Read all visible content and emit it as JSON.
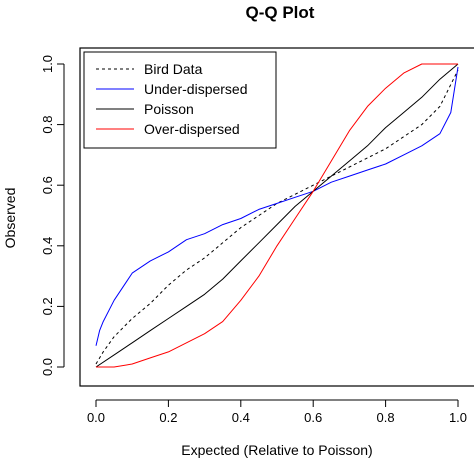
{
  "chart_data": {
    "type": "line",
    "title": "Q-Q Plot",
    "xlabel": "Expected (Relative to Poisson)",
    "ylabel": "Observed",
    "xlim": [
      0,
      1
    ],
    "ylim": [
      0,
      1
    ],
    "xticks": [
      "0.0",
      "0.2",
      "0.4",
      "0.6",
      "0.8",
      "1.0"
    ],
    "yticks": [
      "0.0",
      "0.2",
      "0.4",
      "0.6",
      "0.8",
      "1.0"
    ],
    "grid": false,
    "legend_position": "top-left",
    "series": [
      {
        "name": "Bird Data",
        "color": "#000000",
        "dash": "dashed",
        "x": [
          0,
          0.02,
          0.05,
          0.1,
          0.15,
          0.2,
          0.25,
          0.3,
          0.35,
          0.4,
          0.45,
          0.5,
          0.55,
          0.6,
          0.65,
          0.7,
          0.75,
          0.8,
          0.85,
          0.9,
          0.95,
          1.0
        ],
        "y": [
          0.01,
          0.05,
          0.1,
          0.16,
          0.21,
          0.27,
          0.32,
          0.36,
          0.41,
          0.46,
          0.5,
          0.54,
          0.57,
          0.6,
          0.63,
          0.66,
          0.69,
          0.72,
          0.76,
          0.8,
          0.86,
          0.98
        ]
      },
      {
        "name": "Under-dispersed",
        "color": "#0000ff",
        "dash": "solid",
        "x": [
          0,
          0.01,
          0.02,
          0.05,
          0.1,
          0.15,
          0.2,
          0.25,
          0.3,
          0.35,
          0.4,
          0.45,
          0.5,
          0.55,
          0.6,
          0.65,
          0.7,
          0.75,
          0.8,
          0.85,
          0.9,
          0.95,
          0.98,
          1.0
        ],
        "y": [
          0.07,
          0.12,
          0.15,
          0.22,
          0.31,
          0.35,
          0.38,
          0.42,
          0.44,
          0.47,
          0.49,
          0.52,
          0.54,
          0.56,
          0.58,
          0.61,
          0.63,
          0.65,
          0.67,
          0.7,
          0.73,
          0.77,
          0.84,
          0.99
        ]
      },
      {
        "name": "Poisson",
        "color": "#000000",
        "dash": "solid",
        "x": [
          0,
          0.05,
          0.1,
          0.15,
          0.2,
          0.25,
          0.3,
          0.35,
          0.4,
          0.45,
          0.5,
          0.55,
          0.6,
          0.65,
          0.7,
          0.75,
          0.8,
          0.85,
          0.9,
          0.95,
          1.0
        ],
        "y": [
          0.0,
          0.04,
          0.08,
          0.12,
          0.16,
          0.2,
          0.24,
          0.29,
          0.35,
          0.41,
          0.47,
          0.53,
          0.58,
          0.63,
          0.68,
          0.73,
          0.79,
          0.84,
          0.89,
          0.95,
          1.0
        ]
      },
      {
        "name": "Over-dispersed",
        "color": "#ff0000",
        "dash": "solid",
        "x": [
          0,
          0.05,
          0.1,
          0.15,
          0.2,
          0.25,
          0.3,
          0.35,
          0.4,
          0.45,
          0.5,
          0.55,
          0.6,
          0.65,
          0.7,
          0.75,
          0.8,
          0.85,
          0.9,
          0.95,
          1.0
        ],
        "y": [
          0.0,
          0.0,
          0.01,
          0.03,
          0.05,
          0.08,
          0.11,
          0.15,
          0.22,
          0.3,
          0.4,
          0.49,
          0.58,
          0.68,
          0.78,
          0.86,
          0.92,
          0.97,
          1.0,
          1.0,
          1.0
        ]
      }
    ]
  }
}
